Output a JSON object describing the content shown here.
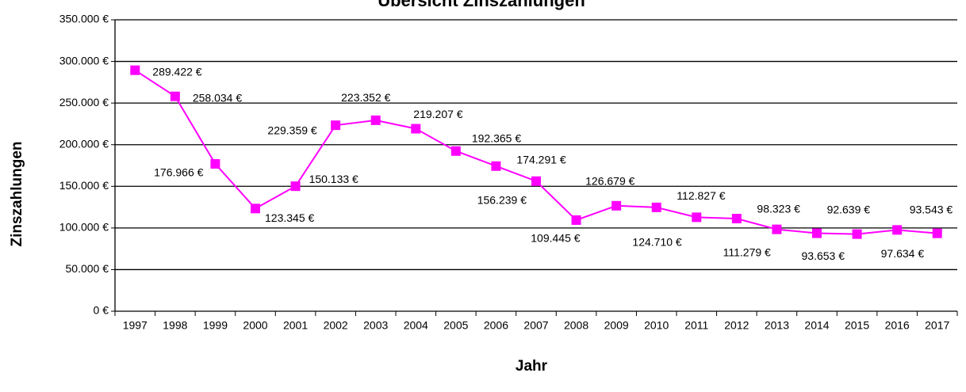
{
  "chart_data": {
    "type": "line",
    "title": "Übersicht Zinszahlungen",
    "x_label": "Jahr",
    "y_label": "Zinszahlungen",
    "categories": [
      "1997",
      "1998",
      "1999",
      "2000",
      "2001",
      "2002",
      "2003",
      "2004",
      "2005",
      "2006",
      "2007",
      "2008",
      "2009",
      "2010",
      "2011",
      "2012",
      "2013",
      "2014",
      "2015",
      "2016",
      "2017"
    ],
    "series": [
      {
        "name": "Zinszahlungen",
        "color": "#ff00ff",
        "values": [
          289422,
          258034,
          176966,
          123345,
          150133,
          223352,
          229359,
          219207,
          192365,
          174291,
          156239,
          109445,
          126679,
          124710,
          112827,
          111279,
          98323,
          93653,
          92639,
          97634,
          93543
        ],
        "value_labels": [
          "289.422 €",
          "258.034 €",
          "176.966 €",
          "123.345 €",
          "150.133 €",
          "223.352 €",
          "229.359 €",
          "219.207 €",
          "192.365 €",
          "174.291 €",
          "156.239 €",
          "109.445 €",
          "126.679 €",
          "124.710 €",
          "112.827 €",
          "111.279 €",
          "98.323 €",
          "93.653 €",
          "92.639 €",
          "97.634 €",
          "93.543 €"
        ]
      }
    ],
    "ylim": [
      0,
      350000
    ],
    "yticks": [
      {
        "value": 0,
        "label": "0 €"
      },
      {
        "value": 50000,
        "label": "50.000 €"
      },
      {
        "value": 100000,
        "label": "100.000 €"
      },
      {
        "value": 150000,
        "label": "150.000 €"
      },
      {
        "value": 200000,
        "label": "200.000 €"
      },
      {
        "value": 250000,
        "label": "250.000 €"
      },
      {
        "value": 300000,
        "label": "300.000 €"
      },
      {
        "value": 350000,
        "label": "350.000 €"
      }
    ],
    "grid": true
  }
}
